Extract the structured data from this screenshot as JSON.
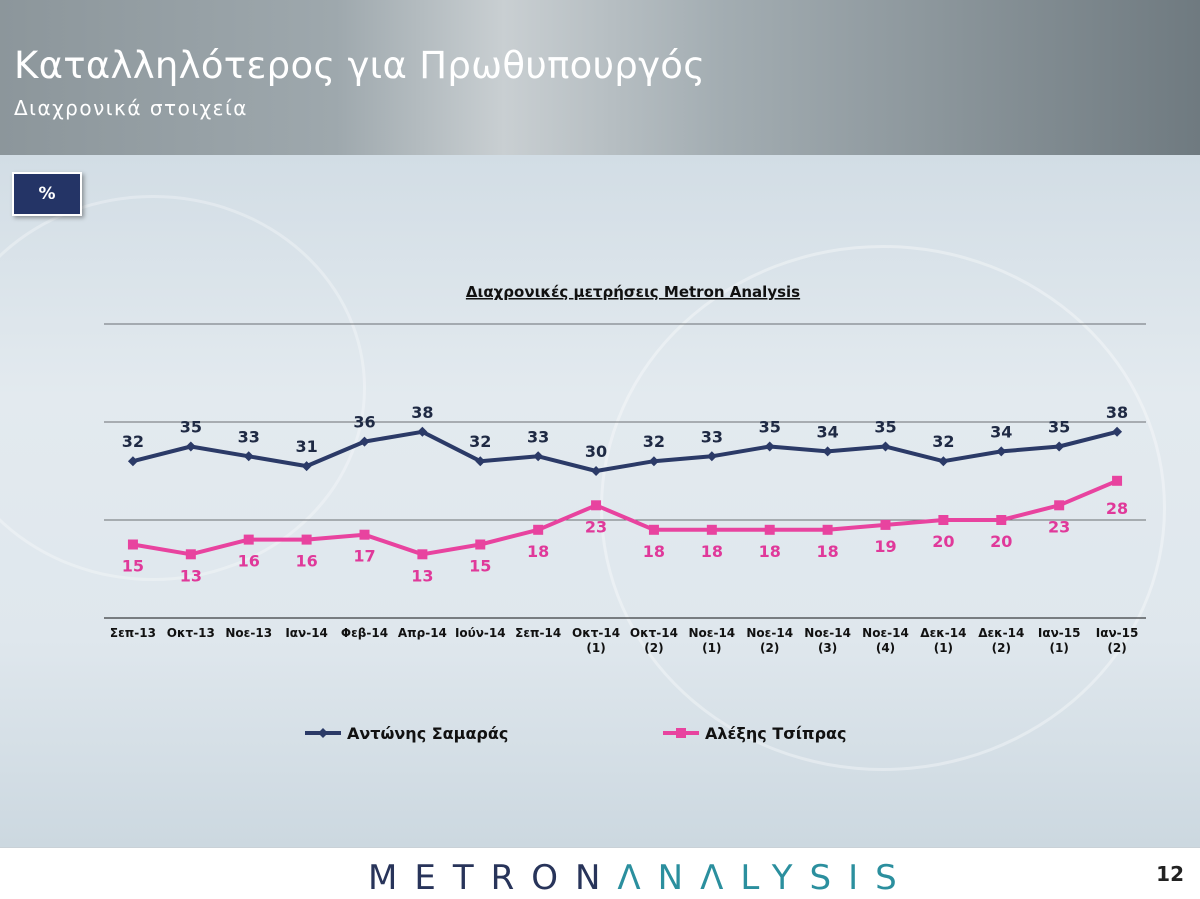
{
  "header": {
    "title": "Καταλληλότερος για Πρωθυπουργός",
    "subtitle": "Διαχρονικά στοιχεία"
  },
  "badge": {
    "label": "%"
  },
  "chart_data": {
    "type": "line",
    "title": "Διαχρονικές μετρήσεις Metron Analysis",
    "categories": [
      [
        "Σεπ-13"
      ],
      [
        "Οκτ-13"
      ],
      [
        "Νοε-13"
      ],
      [
        "Ιαν-14"
      ],
      [
        "Φεβ-14"
      ],
      [
        "Απρ-14"
      ],
      [
        "Ιούν-14"
      ],
      [
        "Σεπ-14"
      ],
      [
        "Οκτ-14",
        "(1)"
      ],
      [
        "Οκτ-14",
        "(2)"
      ],
      [
        "Νοε-14",
        "(1)"
      ],
      [
        "Νοε-14",
        "(2)"
      ],
      [
        "Νοε-14",
        "(3)"
      ],
      [
        "Νοε-14",
        "(4)"
      ],
      [
        "Δεκ-14",
        "(1)"
      ],
      [
        "Δεκ-14",
        "(2)"
      ],
      [
        "Ιαν-15",
        "(1)"
      ],
      [
        "Ιαν-15",
        "(2)"
      ]
    ],
    "series": [
      {
        "name": "Αντώνης Σαμαράς",
        "color": "#2b3a67",
        "marker": "diamond",
        "values": [
          32,
          35,
          33,
          31,
          36,
          38,
          32,
          33,
          30,
          32,
          33,
          35,
          34,
          35,
          32,
          34,
          35,
          38
        ]
      },
      {
        "name": "Αλέξης Τσίπρας",
        "color": "#e8439f",
        "marker": "square",
        "values": [
          15,
          13,
          16,
          16,
          17,
          13,
          15,
          18,
          23,
          18,
          18,
          18,
          18,
          19,
          20,
          20,
          23,
          28
        ]
      }
    ],
    "ylim": [
      0,
      60
    ],
    "gridlines": [
      20,
      40,
      60
    ],
    "legend_position": "bottom"
  },
  "footer": {
    "brand_part1": "METRON",
    "brand_part2": "ΛNΛLYSIS",
    "page_number": "12"
  }
}
